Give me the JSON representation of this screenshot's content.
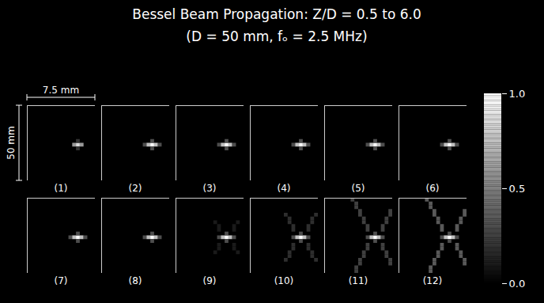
{
  "chart_data": {
    "type": "heatmap",
    "title": "Bessel Beam Propagation: Z/D = 0.5 to 6.0",
    "subtitle": "(D = 50 mm, fₒ = 2.5 MHz)",
    "annotations": {
      "width": "7.5 mm",
      "height": "50 mm"
    },
    "tick_labels": false,
    "columns": 18,
    "rows": 20,
    "panels": [
      {
        "label": "(1)",
        "cells": [
          [
            12,
            10,
            0.6
          ],
          [
            13,
            10,
            0.85
          ],
          [
            14,
            10,
            0.6
          ],
          [
            13,
            9,
            0.2
          ],
          [
            13,
            11,
            0.2
          ]
        ]
      },
      {
        "label": "(2)",
        "cells": [
          [
            11,
            10,
            0.3
          ],
          [
            12,
            10,
            0.75
          ],
          [
            13,
            10,
            1.0
          ],
          [
            14,
            10,
            0.75
          ],
          [
            15,
            10,
            0.3
          ],
          [
            13,
            9,
            0.3
          ],
          [
            13,
            11,
            0.3
          ]
        ]
      },
      {
        "label": "(3)",
        "cells": [
          [
            11,
            10,
            0.3
          ],
          [
            12,
            10,
            0.75
          ],
          [
            13,
            10,
            1.0
          ],
          [
            14,
            10,
            0.75
          ],
          [
            15,
            10,
            0.3
          ],
          [
            13,
            9,
            0.3
          ],
          [
            13,
            11,
            0.3
          ]
        ]
      },
      {
        "label": "(4)",
        "cells": [
          [
            11,
            10,
            0.3
          ],
          [
            12,
            10,
            0.75
          ],
          [
            13,
            10,
            1.0
          ],
          [
            14,
            10,
            0.75
          ],
          [
            15,
            10,
            0.3
          ],
          [
            13,
            9,
            0.3
          ],
          [
            13,
            11,
            0.3
          ]
        ]
      },
      {
        "label": "(5)",
        "cells": [
          [
            11,
            10,
            0.3
          ],
          [
            12,
            10,
            0.75
          ],
          [
            13,
            10,
            1.0
          ],
          [
            14,
            10,
            0.75
          ],
          [
            15,
            10,
            0.3
          ],
          [
            13,
            9,
            0.3
          ],
          [
            13,
            11,
            0.3
          ]
        ]
      },
      {
        "label": "(6)",
        "cells": [
          [
            11,
            10,
            0.3
          ],
          [
            12,
            10,
            0.75
          ],
          [
            13,
            10,
            1.0
          ],
          [
            14,
            10,
            0.75
          ],
          [
            15,
            10,
            0.3
          ],
          [
            13,
            9,
            0.3
          ],
          [
            13,
            11,
            0.3
          ]
        ]
      },
      {
        "label": "(7)",
        "cells": [
          [
            11,
            10,
            0.3
          ],
          [
            12,
            10,
            0.75
          ],
          [
            13,
            10,
            1.0
          ],
          [
            14,
            10,
            0.75
          ],
          [
            15,
            10,
            0.3
          ],
          [
            13,
            9,
            0.3
          ],
          [
            13,
            11,
            0.3
          ]
        ]
      },
      {
        "label": "(8)",
        "cells": [
          [
            11,
            10,
            0.3
          ],
          [
            12,
            10,
            0.75
          ],
          [
            13,
            10,
            1.0
          ],
          [
            14,
            10,
            0.75
          ],
          [
            15,
            10,
            0.3
          ],
          [
            13,
            9,
            0.3
          ],
          [
            13,
            11,
            0.3
          ]
        ]
      },
      {
        "label": "(9)",
        "cells": [
          [
            11,
            10,
            0.3
          ],
          [
            12,
            10,
            0.75
          ],
          [
            13,
            10,
            1.0
          ],
          [
            14,
            10,
            0.75
          ],
          [
            15,
            10,
            0.3
          ],
          [
            13,
            9,
            0.3
          ],
          [
            13,
            11,
            0.3
          ],
          [
            11,
            8,
            0.1
          ],
          [
            11,
            7,
            0.1
          ],
          [
            10,
            6,
            0.1
          ],
          [
            15,
            8,
            0.1
          ],
          [
            15,
            7,
            0.1
          ],
          [
            16,
            6,
            0.1
          ],
          [
            11,
            12,
            0.1
          ],
          [
            11,
            13,
            0.1
          ],
          [
            10,
            14,
            0.1
          ],
          [
            15,
            12,
            0.1
          ],
          [
            15,
            13,
            0.1
          ],
          [
            16,
            14,
            0.1
          ]
        ]
      },
      {
        "label": "(10)",
        "cells": [
          [
            11,
            10,
            0.3
          ],
          [
            12,
            10,
            0.75
          ],
          [
            13,
            10,
            1.0
          ],
          [
            14,
            10,
            0.75
          ],
          [
            15,
            10,
            0.3
          ],
          [
            13,
            9,
            0.3
          ],
          [
            13,
            11,
            0.3
          ],
          [
            11,
            8,
            0.18
          ],
          [
            11,
            7,
            0.18
          ],
          [
            10,
            6,
            0.18
          ],
          [
            10,
            5,
            0.18
          ],
          [
            9,
            4,
            0.18
          ],
          [
            15,
            8,
            0.18
          ],
          [
            15,
            7,
            0.18
          ],
          [
            16,
            6,
            0.18
          ],
          [
            16,
            5,
            0.18
          ],
          [
            17,
            4,
            0.18
          ],
          [
            11,
            12,
            0.18
          ],
          [
            11,
            13,
            0.18
          ],
          [
            10,
            14,
            0.18
          ],
          [
            10,
            15,
            0.18
          ],
          [
            9,
            16,
            0.18
          ],
          [
            15,
            12,
            0.18
          ],
          [
            15,
            13,
            0.18
          ],
          [
            16,
            14,
            0.18
          ],
          [
            16,
            15,
            0.18
          ],
          [
            17,
            16,
            0.18
          ]
        ]
      },
      {
        "label": "(11)",
        "cells": [
          [
            11,
            10,
            0.3
          ],
          [
            12,
            10,
            0.75
          ],
          [
            13,
            10,
            1.0
          ],
          [
            14,
            10,
            0.75
          ],
          [
            15,
            10,
            0.3
          ],
          [
            13,
            9,
            0.3
          ],
          [
            13,
            11,
            0.3
          ],
          [
            11,
            8,
            0.25
          ],
          [
            11,
            7,
            0.25
          ],
          [
            10,
            6,
            0.25
          ],
          [
            10,
            5,
            0.25
          ],
          [
            9,
            4,
            0.25
          ],
          [
            9,
            3,
            0.25
          ],
          [
            8,
            2,
            0.25
          ],
          [
            8,
            1,
            0.25
          ],
          [
            7,
            0,
            0.25
          ],
          [
            15,
            8,
            0.25
          ],
          [
            15,
            7,
            0.25
          ],
          [
            16,
            6,
            0.25
          ],
          [
            16,
            5,
            0.25
          ],
          [
            17,
            4,
            0.25
          ],
          [
            17,
            3,
            0.25
          ],
          [
            11,
            12,
            0.25
          ],
          [
            11,
            13,
            0.25
          ],
          [
            10,
            14,
            0.25
          ],
          [
            10,
            15,
            0.25
          ],
          [
            9,
            16,
            0.25
          ],
          [
            9,
            17,
            0.25
          ],
          [
            8,
            18,
            0.25
          ],
          [
            8,
            19,
            0.25
          ],
          [
            15,
            12,
            0.25
          ],
          [
            15,
            13,
            0.25
          ],
          [
            16,
            14,
            0.25
          ],
          [
            16,
            15,
            0.25
          ],
          [
            17,
            16,
            0.25
          ],
          [
            17,
            17,
            0.25
          ]
        ]
      },
      {
        "label": "(12)",
        "cells": [
          [
            11,
            10,
            0.3
          ],
          [
            12,
            10,
            0.75
          ],
          [
            13,
            10,
            1.0
          ],
          [
            14,
            10,
            0.75
          ],
          [
            15,
            10,
            0.3
          ],
          [
            13,
            9,
            0.3
          ],
          [
            13,
            11,
            0.3
          ],
          [
            11,
            8,
            0.35
          ],
          [
            11,
            7,
            0.35
          ],
          [
            10,
            6,
            0.35
          ],
          [
            10,
            5,
            0.35
          ],
          [
            9,
            4,
            0.35
          ],
          [
            9,
            3,
            0.35
          ],
          [
            8,
            2,
            0.35
          ],
          [
            8,
            1,
            0.35
          ],
          [
            7,
            0,
            0.35
          ],
          [
            15,
            8,
            0.35
          ],
          [
            15,
            7,
            0.35
          ],
          [
            16,
            6,
            0.35
          ],
          [
            16,
            5,
            0.35
          ],
          [
            17,
            4,
            0.35
          ],
          [
            17,
            3,
            0.35
          ],
          [
            11,
            12,
            0.35
          ],
          [
            11,
            13,
            0.35
          ],
          [
            10,
            14,
            0.35
          ],
          [
            10,
            15,
            0.35
          ],
          [
            9,
            16,
            0.35
          ],
          [
            9,
            17,
            0.35
          ],
          [
            8,
            18,
            0.35
          ],
          [
            8,
            19,
            0.35
          ],
          [
            15,
            12,
            0.35
          ],
          [
            15,
            13,
            0.35
          ],
          [
            16,
            14,
            0.35
          ],
          [
            16,
            15,
            0.35
          ],
          [
            17,
            16,
            0.35
          ],
          [
            17,
            17,
            0.35
          ]
        ]
      }
    ],
    "colorbar": {
      "range": [
        0,
        1
      ],
      "ticks": [
        {
          "value": 1,
          "label": "1.0"
        },
        {
          "value": 0.5,
          "label": "0.5"
        },
        {
          "value": 0,
          "label": "0.0"
        }
      ],
      "colors": [
        "#000000",
        "#ffffff"
      ]
    }
  }
}
